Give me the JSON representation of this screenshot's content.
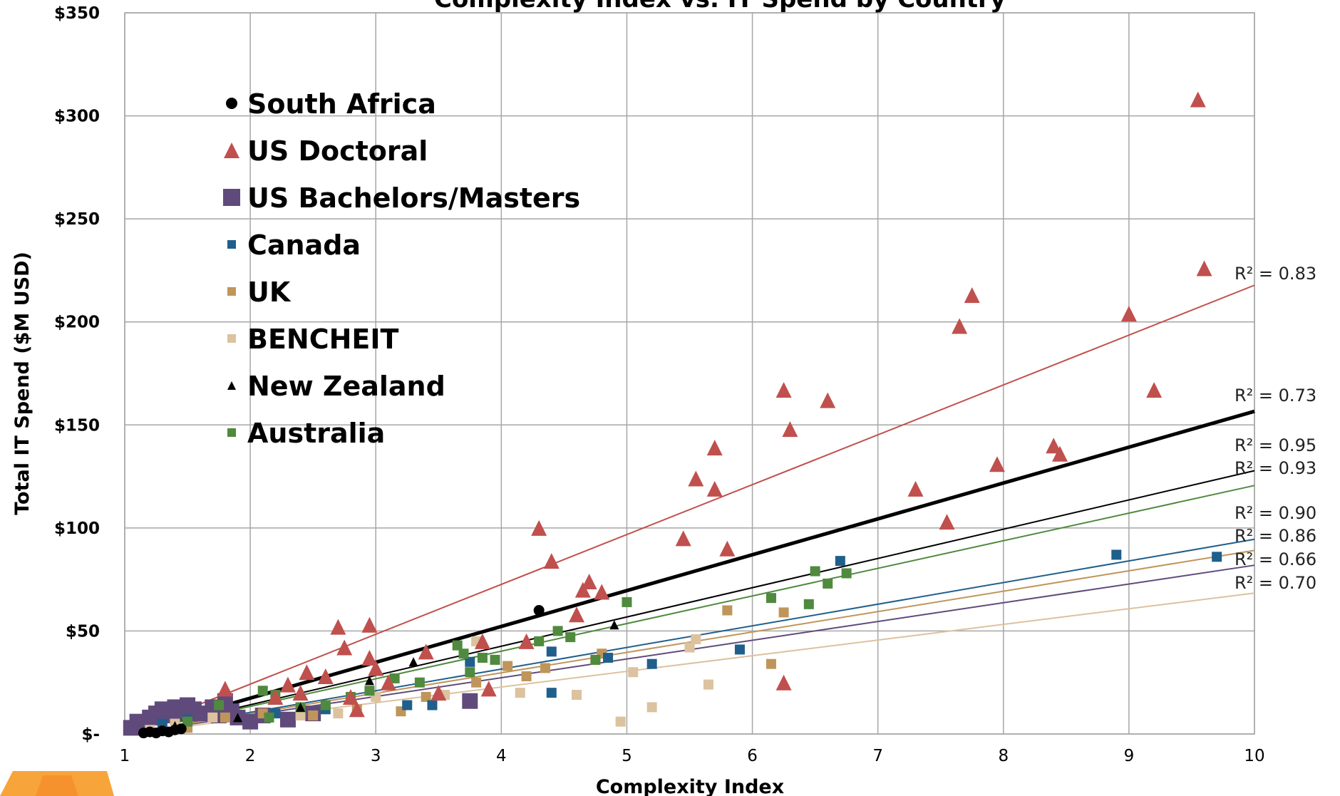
{
  "chart_data": {
    "type": "scatter",
    "title": "Complexity Index vs. IT Spend by Country",
    "xlabel": "Complexity Index",
    "ylabel": "Total IT Spend ($M USD)",
    "xlim": [
      1,
      10
    ],
    "ylim": [
      0,
      350
    ],
    "x_ticks": [
      "1",
      "2",
      "3",
      "4",
      "5",
      "6",
      "7",
      "8",
      "9",
      "10"
    ],
    "y_ticks": [
      "$-",
      "$50",
      "$100",
      "$150",
      "$200",
      "$250",
      "$300",
      "$350"
    ],
    "grid": true,
    "legend_position": "top-left",
    "series": [
      {
        "name": "South Africa",
        "color": "#000000",
        "marker": "circle",
        "points": [
          [
            1.15,
            0.5
          ],
          [
            1.2,
            1
          ],
          [
            1.25,
            0.5
          ],
          [
            1.3,
            1.5
          ],
          [
            1.35,
            1
          ],
          [
            1.4,
            2
          ],
          [
            1.45,
            2.5
          ],
          [
            4.3,
            60
          ]
        ],
        "trend": {
          "slope": 17.4,
          "intercept": -17.4,
          "r2": "R² = 0.73"
        }
      },
      {
        "name": "US Doctoral",
        "color": "#c0504d",
        "marker": "triangle",
        "points": [
          [
            1.8,
            22
          ],
          [
            2.2,
            18
          ],
          [
            2.3,
            24
          ],
          [
            2.4,
            20
          ],
          [
            2.45,
            30
          ],
          [
            2.6,
            28
          ],
          [
            2.7,
            52
          ],
          [
            2.75,
            42
          ],
          [
            2.8,
            18
          ],
          [
            2.85,
            12
          ],
          [
            2.95,
            53
          ],
          [
            2.95,
            37
          ],
          [
            3.0,
            32
          ],
          [
            3.1,
            25
          ],
          [
            3.4,
            40
          ],
          [
            3.5,
            20
          ],
          [
            3.85,
            45
          ],
          [
            3.9,
            22
          ],
          [
            4.2,
            45
          ],
          [
            4.3,
            100
          ],
          [
            4.4,
            84
          ],
          [
            4.6,
            58
          ],
          [
            4.65,
            70
          ],
          [
            4.7,
            74
          ],
          [
            4.8,
            69
          ],
          [
            5.45,
            95
          ],
          [
            5.55,
            124
          ],
          [
            5.7,
            119
          ],
          [
            5.7,
            139
          ],
          [
            5.8,
            90
          ],
          [
            6.25,
            25
          ],
          [
            6.25,
            167
          ],
          [
            6.3,
            148
          ],
          [
            6.6,
            162
          ],
          [
            7.3,
            119
          ],
          [
            7.55,
            103
          ],
          [
            7.65,
            198
          ],
          [
            7.75,
            213
          ],
          [
            7.95,
            131
          ],
          [
            8.4,
            140
          ],
          [
            8.45,
            136
          ],
          [
            9.0,
            204
          ],
          [
            9.2,
            167
          ],
          [
            9.55,
            308
          ],
          [
            9.6,
            226
          ]
        ],
        "trend": {
          "slope": 24.2,
          "intercept": -24.2,
          "r2": "R² = 0.83"
        }
      },
      {
        "name": "US Bachelors/Masters",
        "color": "#604a7b",
        "marker": "square",
        "points": [
          [
            1.05,
            3
          ],
          [
            1.1,
            6
          ],
          [
            1.15,
            5
          ],
          [
            1.2,
            8
          ],
          [
            1.25,
            10
          ],
          [
            1.3,
            12
          ],
          [
            1.35,
            9
          ],
          [
            1.4,
            13
          ],
          [
            1.45,
            11
          ],
          [
            1.5,
            14
          ],
          [
            1.55,
            12
          ],
          [
            1.6,
            10
          ],
          [
            1.7,
            13
          ],
          [
            1.75,
            9
          ],
          [
            1.8,
            16
          ],
          [
            1.85,
            11
          ],
          [
            1.9,
            8
          ],
          [
            2.0,
            6
          ],
          [
            2.1,
            9
          ],
          [
            2.3,
            7
          ],
          [
            2.5,
            10
          ],
          [
            3.75,
            16
          ]
        ],
        "trend": {
          "slope": 9.1,
          "intercept": -9.1,
          "r2": "R² = 0.66"
        }
      },
      {
        "name": "Canada",
        "color": "#1f5f8b",
        "marker": "square",
        "points": [
          [
            1.3,
            5
          ],
          [
            1.5,
            7
          ],
          [
            2.2,
            10
          ],
          [
            2.6,
            12
          ],
          [
            3.25,
            14
          ],
          [
            3.45,
            14
          ],
          [
            3.75,
            35
          ],
          [
            4.4,
            20
          ],
          [
            4.4,
            40
          ],
          [
            4.85,
            37
          ],
          [
            5.2,
            34
          ],
          [
            5.9,
            41
          ],
          [
            6.7,
            84
          ],
          [
            8.9,
            87
          ],
          [
            9.7,
            86
          ]
        ],
        "trend": {
          "slope": 10.5,
          "intercept": -10.5,
          "r2": "R² = 0.90"
        }
      },
      {
        "name": "UK",
        "color": "#c0955a",
        "marker": "square",
        "points": [
          [
            1.5,
            3
          ],
          [
            1.8,
            8
          ],
          [
            2.1,
            10
          ],
          [
            2.5,
            9
          ],
          [
            2.85,
            12
          ],
          [
            3.2,
            11
          ],
          [
            3.4,
            18
          ],
          [
            3.8,
            25
          ],
          [
            4.05,
            33
          ],
          [
            4.2,
            28
          ],
          [
            4.35,
            32
          ],
          [
            4.75,
            36
          ],
          [
            4.8,
            39
          ],
          [
            5.8,
            60
          ],
          [
            6.15,
            34
          ],
          [
            6.25,
            59
          ]
        ],
        "trend": {
          "slope": 9.9,
          "intercept": -9.9,
          "r2": "R² = 0.86"
        }
      },
      {
        "name": "BENCHEIT",
        "color": "#dcc29e",
        "marker": "square",
        "points": [
          [
            1.2,
            2
          ],
          [
            1.4,
            5
          ],
          [
            1.7,
            8
          ],
          [
            2.4,
            9
          ],
          [
            2.7,
            10
          ],
          [
            3.0,
            18
          ],
          [
            3.55,
            19
          ],
          [
            3.8,
            45
          ],
          [
            4.15,
            20
          ],
          [
            4.6,
            19
          ],
          [
            4.95,
            6
          ],
          [
            5.05,
            30
          ],
          [
            5.2,
            13
          ],
          [
            5.5,
            42
          ],
          [
            5.55,
            46
          ],
          [
            5.65,
            24
          ]
        ],
        "trend": {
          "slope": 7.6,
          "intercept": -7.6,
          "r2": "R² = 0.70"
        }
      },
      {
        "name": "New Zealand",
        "color": "#000000",
        "marker": "triangle",
        "points": [
          [
            1.4,
            4
          ],
          [
            1.9,
            8
          ],
          [
            2.4,
            13
          ],
          [
            2.95,
            26
          ],
          [
            3.3,
            35
          ],
          [
            4.9,
            53
          ]
        ],
        "trend": {
          "slope": 14.2,
          "intercept": -14.2,
          "r2": "R² = 0.95"
        }
      },
      {
        "name": "Australia",
        "color": "#4f8a3e",
        "marker": "square",
        "points": [
          [
            1.5,
            6
          ],
          [
            1.75,
            14
          ],
          [
            2.1,
            21
          ],
          [
            2.15,
            8
          ],
          [
            2.2,
            19
          ],
          [
            2.4,
            13
          ],
          [
            2.6,
            14
          ],
          [
            2.8,
            18
          ],
          [
            2.95,
            21
          ],
          [
            3.15,
            27
          ],
          [
            3.35,
            25
          ],
          [
            3.65,
            43
          ],
          [
            3.7,
            39
          ],
          [
            3.75,
            30
          ],
          [
            3.85,
            37
          ],
          [
            3.95,
            36
          ],
          [
            4.3,
            45
          ],
          [
            4.45,
            50
          ],
          [
            4.55,
            47
          ],
          [
            4.75,
            36
          ],
          [
            5.0,
            64
          ],
          [
            6.15,
            66
          ],
          [
            6.45,
            63
          ],
          [
            6.5,
            79
          ],
          [
            6.6,
            73
          ],
          [
            6.75,
            78
          ]
        ],
        "trend": {
          "slope": 13.4,
          "intercept": -13.4,
          "r2": "R² = 0.93"
        }
      }
    ]
  }
}
